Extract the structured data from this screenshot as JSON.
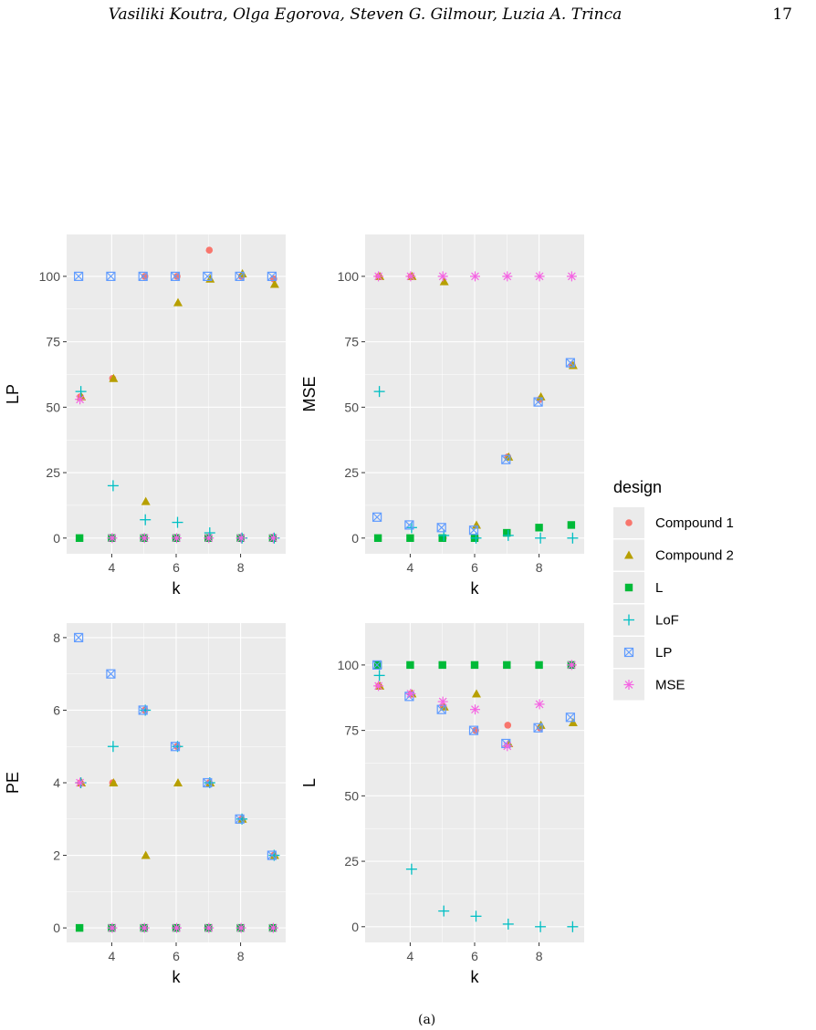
{
  "page": {
    "running_header": "Vasiliki Koutra, Olga Egorova, Steven G. Gilmour, Luzia A. Trinca",
    "page_number": "17",
    "caption_fragment": "(a)"
  },
  "colors": {
    "Compound 1": "#F8766D",
    "Compound 2": "#B79F00",
    "L": "#00BA38",
    "LoF": "#00BFC4",
    "LP": "#619CFF",
    "MSE": "#F564E3",
    "panel_bg": "#EBEBEB",
    "grid": "#FFFFFF",
    "text": "#4D4D4D"
  },
  "chart_data": [
    {
      "type": "scatter",
      "ylabel": "LP",
      "xlabel": "k",
      "xlim": [
        2.6,
        9.4
      ],
      "ylim": [
        -6,
        116
      ],
      "xticks": [
        4,
        6,
        8
      ],
      "yticks": [
        0,
        25,
        50,
        75,
        100
      ],
      "ytick_labels": [
        "0",
        "25",
        "50",
        "75",
        "100"
      ],
      "grid": true,
      "series": [
        {
          "name": "Compound 1",
          "points": [
            [
              3,
              54
            ],
            [
              4,
              61
            ],
            [
              5,
              100
            ],
            [
              6,
              100
            ],
            [
              7,
              110
            ],
            [
              8,
              100
            ],
            [
              9,
              99
            ]
          ]
        },
        {
          "name": "Compound 2",
          "points": [
            [
              3,
              54
            ],
            [
              4,
              61
            ],
            [
              5,
              14
            ],
            [
              6,
              90
            ],
            [
              7,
              99
            ],
            [
              8,
              101
            ],
            [
              9,
              97
            ]
          ]
        },
        {
          "name": "L",
          "points": [
            [
              3,
              0
            ],
            [
              4,
              0
            ],
            [
              5,
              0
            ],
            [
              6,
              0
            ],
            [
              7,
              0
            ],
            [
              8,
              0
            ],
            [
              9,
              0
            ]
          ]
        },
        {
          "name": "LoF",
          "points": [
            [
              3,
              56
            ],
            [
              4,
              20
            ],
            [
              5,
              7
            ],
            [
              6,
              6
            ],
            [
              7,
              2
            ],
            [
              8,
              0
            ],
            [
              9,
              0
            ]
          ]
        },
        {
          "name": "LP",
          "points": [
            [
              3,
              100
            ],
            [
              4,
              100
            ],
            [
              5,
              100
            ],
            [
              6,
              100
            ],
            [
              7,
              100
            ],
            [
              8,
              100
            ],
            [
              9,
              100
            ]
          ]
        },
        {
          "name": "MSE",
          "points": [
            [
              3,
              53
            ],
            [
              4,
              0
            ],
            [
              5,
              0
            ],
            [
              6,
              0
            ],
            [
              7,
              0
            ],
            [
              8,
              0
            ],
            [
              9,
              0
            ]
          ]
        }
      ]
    },
    {
      "type": "scatter",
      "ylabel": "MSE",
      "xlabel": "k",
      "xlim": [
        2.6,
        9.4
      ],
      "ylim": [
        -6,
        116
      ],
      "xticks": [
        4,
        6,
        8
      ],
      "yticks": [
        0,
        25,
        50,
        75,
        100
      ],
      "ytick_labels": [
        "0",
        "25",
        "50",
        "75",
        "100"
      ],
      "grid": true,
      "series": [
        {
          "name": "Compound 1",
          "points": [
            [
              3,
              100
            ],
            [
              4,
              100
            ],
            [
              5,
              0
            ],
            [
              6,
              0
            ],
            [
              7,
              31
            ],
            [
              8,
              53
            ],
            [
              9,
              66
            ]
          ]
        },
        {
          "name": "Compound 2",
          "points": [
            [
              3,
              100
            ],
            [
              4,
              100
            ],
            [
              5,
              98
            ],
            [
              6,
              5
            ],
            [
              7,
              31
            ],
            [
              8,
              54
            ],
            [
              9,
              66
            ]
          ]
        },
        {
          "name": "L",
          "points": [
            [
              3,
              0
            ],
            [
              4,
              0
            ],
            [
              5,
              0
            ],
            [
              6,
              0
            ],
            [
              7,
              2
            ],
            [
              8,
              4
            ],
            [
              9,
              5
            ]
          ]
        },
        {
          "name": "LoF",
          "points": [
            [
              3,
              56
            ],
            [
              4,
              4
            ],
            [
              5,
              1
            ],
            [
              6,
              0
            ],
            [
              7,
              1
            ],
            [
              8,
              0
            ],
            [
              9,
              0
            ]
          ]
        },
        {
          "name": "LP",
          "points": [
            [
              3,
              8
            ],
            [
              4,
              5
            ],
            [
              5,
              4
            ],
            [
              6,
              3
            ],
            [
              7,
              30
            ],
            [
              8,
              52
            ],
            [
              9,
              67
            ]
          ]
        },
        {
          "name": "MSE",
          "points": [
            [
              3,
              100
            ],
            [
              4,
              100
            ],
            [
              5,
              100
            ],
            [
              6,
              100
            ],
            [
              7,
              100
            ],
            [
              8,
              100
            ],
            [
              9,
              100
            ]
          ]
        }
      ]
    },
    {
      "type": "scatter",
      "ylabel": "PE",
      "xlabel": "k",
      "xlim": [
        2.6,
        9.4
      ],
      "ylim": [
        -0.4,
        8.4
      ],
      "xticks": [
        4,
        6,
        8
      ],
      "yticks": [
        0,
        2,
        4,
        6,
        8
      ],
      "ytick_labels": [
        "0",
        "2",
        "4",
        "6",
        "8"
      ],
      "grid": true,
      "series": [
        {
          "name": "Compound 1",
          "points": [
            [
              3,
              4
            ],
            [
              4,
              4
            ],
            [
              5,
              6
            ],
            [
              6,
              5
            ],
            [
              7,
              4
            ],
            [
              8,
              3
            ],
            [
              9,
              2
            ]
          ]
        },
        {
          "name": "Compound 2",
          "points": [
            [
              3,
              4
            ],
            [
              4,
              4
            ],
            [
              5,
              2
            ],
            [
              6,
              4
            ],
            [
              7,
              4
            ],
            [
              8,
              3
            ],
            [
              9,
              2
            ]
          ]
        },
        {
          "name": "L",
          "points": [
            [
              3,
              0
            ],
            [
              4,
              0
            ],
            [
              5,
              0
            ],
            [
              6,
              0
            ],
            [
              7,
              0
            ],
            [
              8,
              0
            ],
            [
              9,
              0
            ]
          ]
        },
        {
          "name": "LoF",
          "points": [
            [
              3,
              4
            ],
            [
              4,
              5
            ],
            [
              5,
              6
            ],
            [
              6,
              5
            ],
            [
              7,
              4
            ],
            [
              8,
              3
            ],
            [
              9,
              2
            ]
          ]
        },
        {
          "name": "LP",
          "points": [
            [
              3,
              8
            ],
            [
              4,
              7
            ],
            [
              5,
              6
            ],
            [
              6,
              5
            ],
            [
              7,
              4
            ],
            [
              8,
              3
            ],
            [
              9,
              2
            ]
          ]
        },
        {
          "name": "MSE",
          "points": [
            [
              3,
              4
            ],
            [
              4,
              0
            ],
            [
              5,
              0
            ],
            [
              6,
              0
            ],
            [
              7,
              0
            ],
            [
              8,
              0
            ],
            [
              9,
              0
            ]
          ]
        }
      ]
    },
    {
      "type": "scatter",
      "ylabel": "L",
      "xlabel": "k",
      "xlim": [
        2.6,
        9.4
      ],
      "ylim": [
        -6,
        116
      ],
      "xticks": [
        4,
        6,
        8
      ],
      "yticks": [
        0,
        25,
        50,
        75,
        100
      ],
      "ytick_labels": [
        "0",
        "25",
        "50",
        "75",
        "100"
      ],
      "grid": true,
      "series": [
        {
          "name": "Compound 1",
          "points": [
            [
              3,
              92
            ],
            [
              4,
              89
            ],
            [
              5,
              84
            ],
            [
              6,
              75
            ],
            [
              7,
              77
            ],
            [
              8,
              76
            ],
            [
              9,
              100
            ]
          ]
        },
        {
          "name": "Compound 2",
          "points": [
            [
              3,
              92
            ],
            [
              4,
              89
            ],
            [
              5,
              84
            ],
            [
              6,
              89
            ],
            [
              7,
              70
            ],
            [
              8,
              77
            ],
            [
              9,
              78
            ]
          ]
        },
        {
          "name": "L",
          "points": [
            [
              3,
              100
            ],
            [
              4,
              100
            ],
            [
              5,
              100
            ],
            [
              6,
              100
            ],
            [
              7,
              100
            ],
            [
              8,
              100
            ],
            [
              9,
              100
            ]
          ]
        },
        {
          "name": "LoF",
          "points": [
            [
              3,
              96
            ],
            [
              4,
              22
            ],
            [
              5,
              6
            ],
            [
              6,
              4
            ],
            [
              7,
              1
            ],
            [
              8,
              0
            ],
            [
              9,
              0
            ]
          ]
        },
        {
          "name": "LP",
          "points": [
            [
              3,
              100
            ],
            [
              4,
              88
            ],
            [
              5,
              83
            ],
            [
              6,
              75
            ],
            [
              7,
              70
            ],
            [
              8,
              76
            ],
            [
              9,
              80
            ]
          ]
        },
        {
          "name": "MSE",
          "points": [
            [
              3,
              92
            ],
            [
              4,
              89
            ],
            [
              5,
              86
            ],
            [
              6,
              83
            ],
            [
              7,
              69
            ],
            [
              8,
              85
            ],
            [
              9,
              100
            ]
          ]
        }
      ]
    }
  ],
  "legend": {
    "title": "design",
    "placement": "right",
    "items": [
      {
        "label": "Compound 1",
        "shape": "circle"
      },
      {
        "label": "Compound 2",
        "shape": "triangle"
      },
      {
        "label": "L",
        "shape": "square"
      },
      {
        "label": "LoF",
        "shape": "plus"
      },
      {
        "label": "LP",
        "shape": "boxed-x"
      },
      {
        "label": "MSE",
        "shape": "asterisk"
      }
    ]
  }
}
